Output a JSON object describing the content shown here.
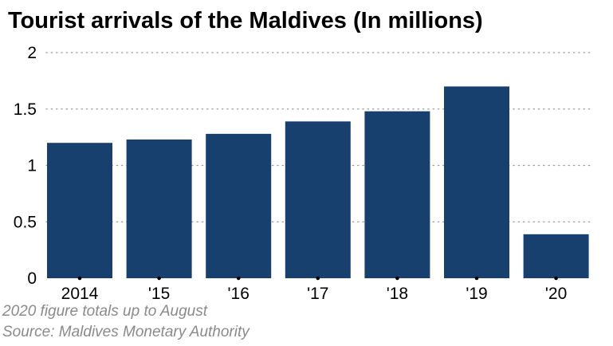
{
  "chart_data": {
    "type": "bar",
    "title": "Tourist arrivals of the Maldives (In millions)",
    "categories": [
      "2014",
      "'15",
      "'16",
      "'17",
      "'18",
      "'19",
      "'20"
    ],
    "values": [
      1.2,
      1.23,
      1.28,
      1.39,
      1.48,
      1.7,
      0.39
    ],
    "y_ticks": [
      "0",
      "0.5",
      "1",
      "1.5",
      "2"
    ],
    "ylim": [
      0,
      2
    ],
    "xlabel": "",
    "ylabel": "",
    "grid": "horizontal-dotted",
    "bar_color": "#17406e",
    "note": "2020 figure totals up to August",
    "source": "Source: Maldives Monetary Authority"
  }
}
